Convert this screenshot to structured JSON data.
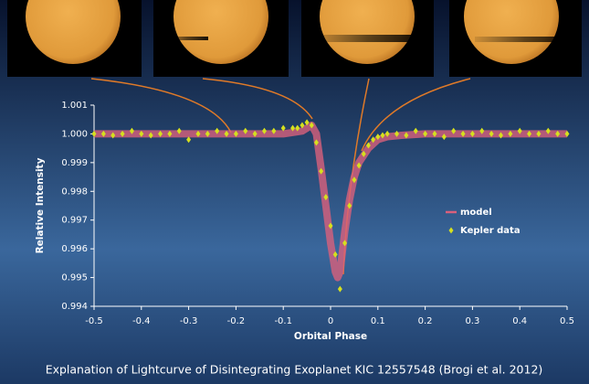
{
  "chart_data": {
    "type": "scatter",
    "caption": "Explanation of Lightcurve of Disintegrating Exoplanet KIC 12557548 (Brogi et al. 2012)",
    "xlabel": "Orbital Phase",
    "ylabel": "Relative Intensity",
    "xlim": [
      -0.5,
      0.5
    ],
    "ylim": [
      0.994,
      1.001
    ],
    "xticks": [
      -0.5,
      -0.4,
      -0.3,
      -0.2,
      -0.1,
      0,
      0.1,
      0.2,
      0.3,
      0.4,
      0.5
    ],
    "yticks": [
      0.994,
      0.995,
      0.996,
      0.997,
      0.998,
      0.999,
      {
        "value": 1,
        "label": "1.000"
      },
      1.001
    ],
    "legend": "right",
    "series": [
      {
        "name": "model",
        "kind": "line",
        "color": "#d9607c",
        "x": [
          -0.5,
          -0.1,
          -0.06,
          -0.04,
          -0.03,
          -0.02,
          -0.01,
          0,
          0.01,
          0.015,
          0.02,
          0.03,
          0.04,
          0.05,
          0.06,
          0.08,
          0.1,
          0.12,
          0.15,
          0.2,
          0.5
        ],
        "values": [
          1,
          1,
          1.0001,
          1.0003,
          1.0,
          0.9988,
          0.9975,
          0.9962,
          0.9952,
          0.995,
          0.9952,
          0.9966,
          0.9977,
          0.9985,
          0.999,
          0.9995,
          0.9998,
          0.9999,
          0.99995,
          1,
          1
        ]
      },
      {
        "name": "Kepler data",
        "kind": "points",
        "color": "#d6e01e",
        "x": [
          -0.5,
          -0.48,
          -0.46,
          -0.44,
          -0.42,
          -0.4,
          -0.38,
          -0.36,
          -0.34,
          -0.32,
          -0.3,
          -0.28,
          -0.26,
          -0.24,
          -0.22,
          -0.2,
          -0.18,
          -0.16,
          -0.14,
          -0.12,
          -0.1,
          -0.08,
          -0.07,
          -0.06,
          -0.05,
          -0.04,
          -0.03,
          -0.02,
          -0.01,
          0,
          0.01,
          0.02,
          0.03,
          0.04,
          0.05,
          0.06,
          0.07,
          0.08,
          0.09,
          0.1,
          0.11,
          0.12,
          0.14,
          0.16,
          0.18,
          0.2,
          0.22,
          0.24,
          0.26,
          0.28,
          0.3,
          0.32,
          0.34,
          0.36,
          0.38,
          0.4,
          0.42,
          0.44,
          0.46,
          0.48,
          0.5
        ],
        "values": [
          1.0,
          1.0,
          0.99995,
          1.0,
          1.0001,
          1.0,
          0.99995,
          1.0,
          1.0,
          1.0001,
          0.9998,
          1.0,
          1.0,
          1.0001,
          1.0,
          1.0,
          1.0001,
          1.0,
          1.0001,
          1.0001,
          1.0002,
          1.0002,
          1.0002,
          1.0003,
          1.0004,
          1.0003,
          0.9997,
          0.9987,
          0.9978,
          0.9968,
          0.9958,
          0.9946,
          0.9962,
          0.9975,
          0.9984,
          0.9989,
          0.9993,
          0.9996,
          0.9998,
          0.9999,
          0.99995,
          1.0,
          1.0,
          0.99995,
          1.0001,
          1.0,
          1.0,
          0.9999,
          1.0001,
          1.0,
          1.0,
          1.0001,
          1.0,
          0.99995,
          1.0,
          1.0001,
          1.0,
          1.0,
          1.0001,
          1.0,
          1.0
        ]
      }
    ]
  }
}
